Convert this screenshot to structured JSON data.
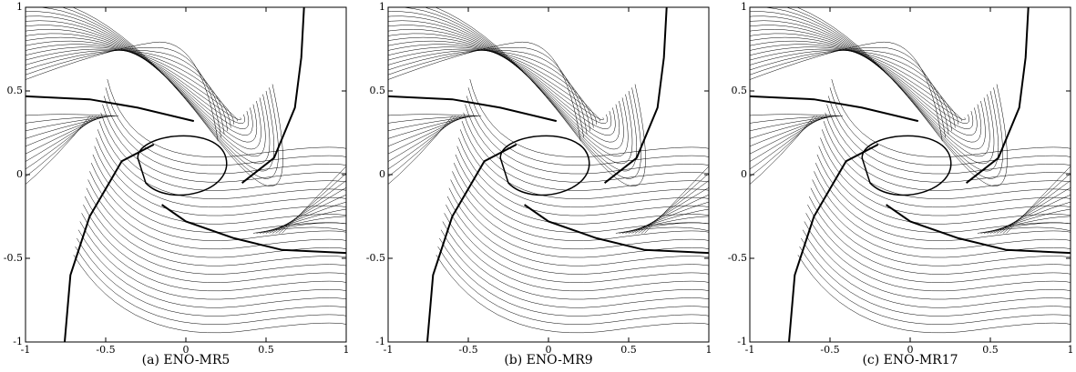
{
  "chart_data": [
    {
      "type": "contour",
      "caption": "(a) ENO-MR5",
      "xlim": [
        -1,
        1
      ],
      "ylim": [
        -1,
        1
      ],
      "xticks": [
        -1,
        -0.5,
        0,
        0.5,
        1
      ],
      "yticks": [
        -1,
        -0.5,
        0,
        0.5,
        1
      ]
    },
    {
      "type": "contour",
      "caption": "(b) ENO-MR9",
      "xlim": [
        -1,
        1
      ],
      "ylim": [
        -1,
        1
      ],
      "xticks": [
        -1,
        -0.5,
        0,
        0.5,
        1
      ],
      "yticks": [
        -1,
        -0.5,
        0,
        0.5,
        1
      ]
    },
    {
      "type": "contour",
      "caption": "(c) ENO-MR17",
      "xlim": [
        -1,
        1
      ],
      "ylim": [
        -1,
        1
      ],
      "xticks": [
        -1,
        -0.5,
        0,
        0.5,
        1
      ],
      "yticks": [
        -1,
        -0.5,
        0,
        0.5,
        1
      ]
    }
  ]
}
